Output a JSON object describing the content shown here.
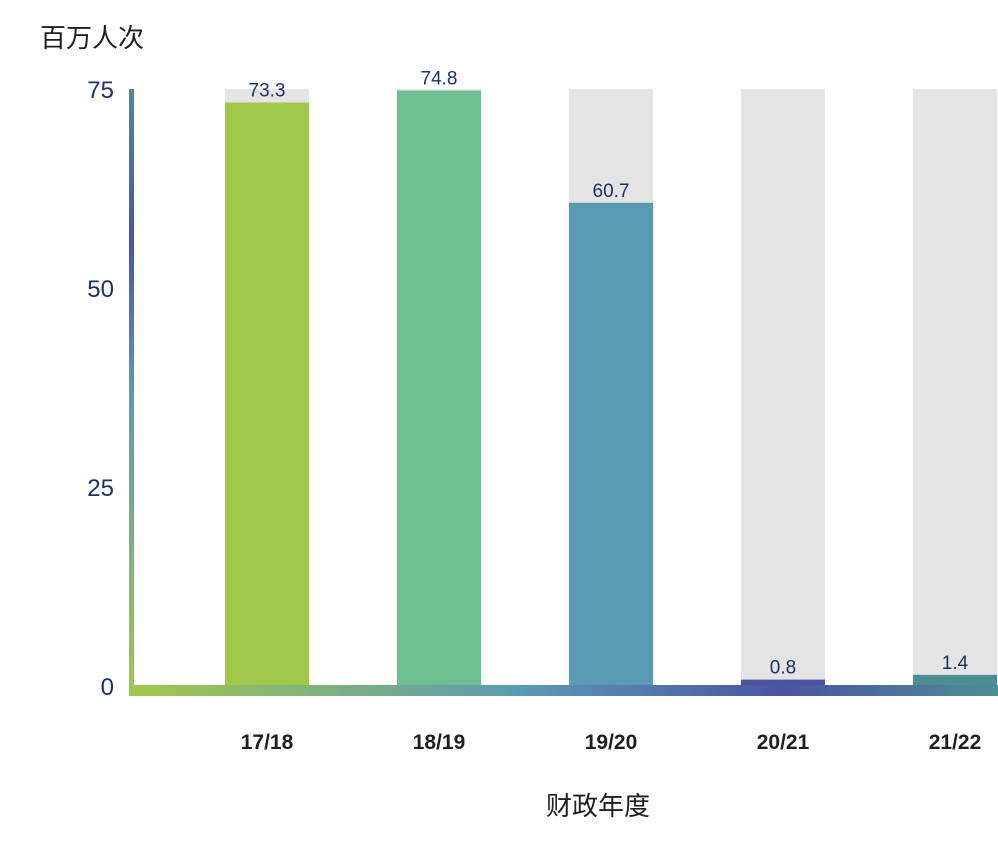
{
  "chart_data": {
    "type": "bar",
    "title": "",
    "ylabel": "百万人次",
    "xlabel": "财政年度",
    "ylim": [
      0,
      75
    ],
    "yticks": [
      0,
      25,
      50,
      75
    ],
    "grid": false,
    "categories": [
      "17/18",
      "18/19",
      "19/20",
      "20/21",
      "21/22"
    ],
    "values": [
      73.3,
      74.8,
      60.7,
      0.8,
      1.4
    ],
    "value_labels": [
      "73.3",
      "74.8",
      "60.7",
      "0.8",
      "1.4"
    ],
    "bar_colors": [
      "#a0c84b",
      "#6ec093",
      "#5b9ab3",
      "#4a55a0",
      "#4d8d94"
    ],
    "background_bar_color": "#e4e4e4",
    "axis_gradient": [
      "#a0c84b",
      "#5b9ab3",
      "#4a55a0",
      "#4d8d94"
    ]
  }
}
